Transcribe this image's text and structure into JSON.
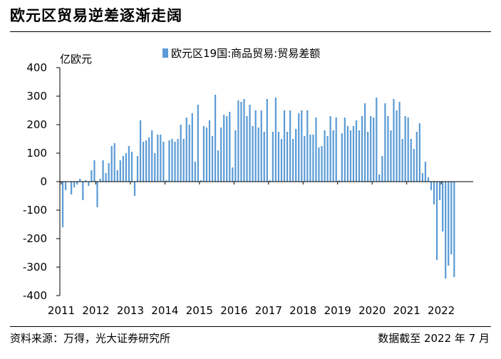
{
  "title": "欧元区贸易逆差逐渐走阔",
  "source": "资料来源：万得，光大证券研究所",
  "cutoff": "数据截至 2022 年 7 月",
  "chart_data": {
    "type": "bar",
    "ylabel": "亿欧元",
    "ylim": [
      -400,
      400
    ],
    "yticks": [
      -400,
      -300,
      -200,
      -100,
      0,
      100,
      200,
      300,
      400
    ],
    "xticks": [
      "2011",
      "2012",
      "2013",
      "2014",
      "2015",
      "2016",
      "2017",
      "2018",
      "2019",
      "2020",
      "2021",
      "2022"
    ],
    "legend_position": "top",
    "series": [
      {
        "name": "欧元区19国:商品贸易:贸易差额",
        "color": "#5b9bd5",
        "start": "2011-01",
        "end": "2022-07",
        "values": [
          -160,
          -30,
          0,
          -45,
          -20,
          -10,
          10,
          -65,
          5,
          -15,
          40,
          75,
          -90,
          10,
          75,
          30,
          65,
          125,
          135,
          40,
          75,
          90,
          100,
          125,
          105,
          -50,
          90,
          215,
          140,
          145,
          155,
          180,
          100,
          165,
          165,
          140,
          5,
          145,
          150,
          140,
          150,
          200,
          150,
          225,
          200,
          240,
          70,
          270,
          5,
          195,
          190,
          215,
          160,
          305,
          110,
          190,
          235,
          230,
          245,
          50,
          180,
          285,
          280,
          290,
          230,
          270,
          195,
          250,
          190,
          250,
          175,
          290,
          5,
          175,
          295,
          175,
          150,
          250,
          175,
          250,
          150,
          185,
          240,
          250,
          160,
          250,
          165,
          165,
          225,
          120,
          125,
          180,
          160,
          230,
          180,
          225,
          5,
          170,
          225,
          195,
          180,
          195,
          215,
          180,
          230,
          275,
          175,
          230,
          225,
          295,
          25,
          90,
          275,
          230,
          180,
          290,
          250,
          280,
          150,
          230,
          225,
          150,
          115,
          175,
          205,
          30,
          70,
          15,
          -30,
          -80,
          -275,
          -65,
          -175,
          -340,
          -295,
          -255,
          -335
        ]
      }
    ]
  }
}
